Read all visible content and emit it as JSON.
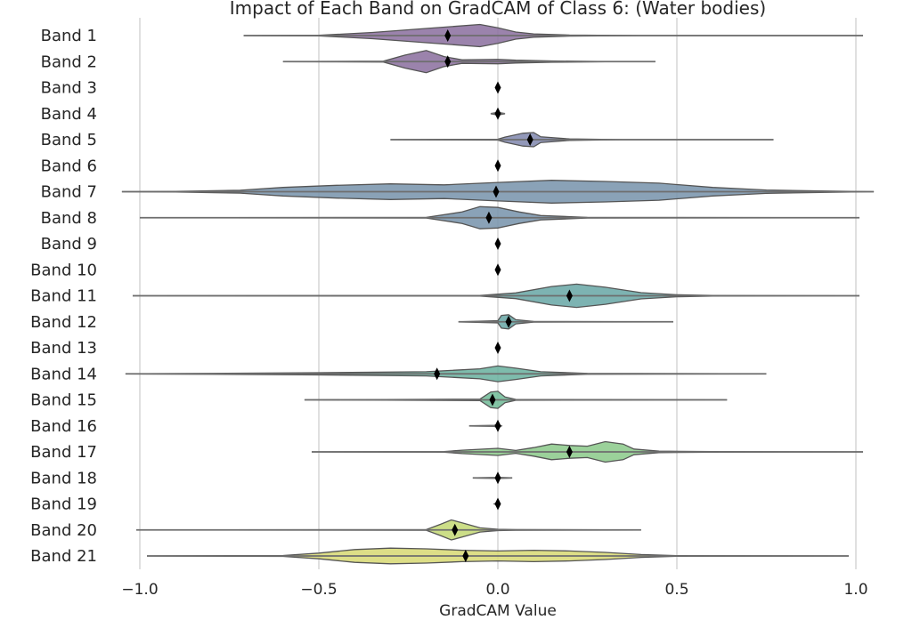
{
  "chart_data": {
    "type": "violin",
    "title": "Impact of Each Band on GradCAM of Class 6: (Water bodies)",
    "xlabel": "GradCAM Value",
    "ylabel": "",
    "xlim": [
      -1.05,
      1.05
    ],
    "xticks": [
      -1.0,
      -0.5,
      0.0,
      0.5,
      1.0
    ],
    "xtick_labels": [
      "−1.0",
      "−0.5",
      "0.0",
      "0.5",
      "1.0"
    ],
    "grid": "x",
    "orientation": "horizontal",
    "categories": [
      "Band 1",
      "Band 2",
      "Band 3",
      "Band 4",
      "Band 5",
      "Band 6",
      "Band 7",
      "Band 8",
      "Band 9",
      "Band 10",
      "Band 11",
      "Band 12",
      "Band 13",
      "Band 14",
      "Band 15",
      "Band 16",
      "Band 17",
      "Band 18",
      "Band 19",
      "Band 20",
      "Band 21"
    ],
    "series": [
      {
        "name": "Band 1",
        "min": -0.71,
        "max": 1.02,
        "mean": -0.14,
        "color": "#8a6d9e",
        "profile": [
          [
            -0.71,
            0
          ],
          [
            -0.5,
            0.02
          ],
          [
            -0.35,
            0.22
          ],
          [
            -0.2,
            0.5
          ],
          [
            -0.05,
            0.78
          ],
          [
            0,
            0.55
          ],
          [
            0.05,
            0.25
          ],
          [
            0.1,
            0.12
          ],
          [
            0.2,
            0.04
          ],
          [
            0.4,
            0
          ],
          [
            1.02,
            0
          ]
        ]
      },
      {
        "name": "Band 2",
        "min": -0.6,
        "max": 0.44,
        "mean": -0.14,
        "color": "#8a6d9e",
        "profile": [
          [
            -0.6,
            0
          ],
          [
            -0.32,
            0.03
          ],
          [
            -0.26,
            0.45
          ],
          [
            -0.2,
            0.78
          ],
          [
            -0.15,
            0.35
          ],
          [
            -0.1,
            0.12
          ],
          [
            0,
            0.15
          ],
          [
            0.05,
            0.1
          ],
          [
            0.15,
            0.05
          ],
          [
            0.3,
            0
          ],
          [
            0.44,
            0
          ]
        ]
      },
      {
        "name": "Band 3",
        "min": 0.0,
        "max": 0.0,
        "mean": 0.0,
        "color": "#8478a2",
        "profile": [
          [
            -0.005,
            0
          ],
          [
            0,
            0.03
          ],
          [
            0.005,
            0
          ]
        ]
      },
      {
        "name": "Band 4",
        "min": -0.02,
        "max": 0.02,
        "mean": 0.0,
        "color": "#8478a2",
        "profile": [
          [
            -0.02,
            0
          ],
          [
            0,
            0.1
          ],
          [
            0.02,
            0
          ]
        ]
      },
      {
        "name": "Band 5",
        "min": -0.3,
        "max": 0.77,
        "mean": 0.09,
        "color": "#7f86ad",
        "profile": [
          [
            -0.3,
            0
          ],
          [
            0,
            0.03
          ],
          [
            0.02,
            0.18
          ],
          [
            0.07,
            0.45
          ],
          [
            0.1,
            0.5
          ],
          [
            0.12,
            0.2
          ],
          [
            0.2,
            0.05
          ],
          [
            0.35,
            0
          ],
          [
            0.77,
            0
          ]
        ]
      },
      {
        "name": "Band 6",
        "min": 0.0,
        "max": 0.0,
        "mean": 0.0,
        "color": "#7f86ad",
        "profile": [
          [
            -0.005,
            0
          ],
          [
            0,
            0.03
          ],
          [
            0.005,
            0
          ]
        ]
      },
      {
        "name": "Band 7",
        "min": -1.05,
        "max": 1.05,
        "mean": -0.005,
        "color": "#7592aa",
        "profile": [
          [
            -1.05,
            0
          ],
          [
            -0.9,
            0.02
          ],
          [
            -0.72,
            0.1
          ],
          [
            -0.6,
            0.3
          ],
          [
            -0.45,
            0.45
          ],
          [
            -0.3,
            0.55
          ],
          [
            -0.15,
            0.48
          ],
          [
            0,
            0.65
          ],
          [
            0.15,
            0.8
          ],
          [
            0.3,
            0.72
          ],
          [
            0.45,
            0.6
          ],
          [
            0.6,
            0.3
          ],
          [
            0.75,
            0.12
          ],
          [
            0.9,
            0.05
          ],
          [
            1.05,
            0
          ]
        ]
      },
      {
        "name": "Band 8",
        "min": -1.0,
        "max": 1.01,
        "mean": -0.025,
        "color": "#7592aa",
        "profile": [
          [
            -1.0,
            0
          ],
          [
            -0.2,
            0.02
          ],
          [
            -0.1,
            0.4
          ],
          [
            -0.05,
            0.78
          ],
          [
            0,
            0.72
          ],
          [
            0.06,
            0.4
          ],
          [
            0.12,
            0.15
          ],
          [
            0.25,
            0.02
          ],
          [
            1.01,
            0
          ]
        ]
      },
      {
        "name": "Band 9",
        "min": 0.0,
        "max": 0.0,
        "mean": 0.0,
        "color": "#6e9aab",
        "profile": [
          [
            -0.005,
            0
          ],
          [
            0,
            0.03
          ],
          [
            0.005,
            0
          ]
        ]
      },
      {
        "name": "Band 10",
        "min": 0.0,
        "max": 0.0,
        "mean": 0.0,
        "color": "#6e9aab",
        "profile": [
          [
            -0.005,
            0
          ],
          [
            0,
            0.03
          ],
          [
            0.005,
            0
          ]
        ]
      },
      {
        "name": "Band 11",
        "min": -1.02,
        "max": 1.01,
        "mean": 0.2,
        "color": "#66a6a4",
        "profile": [
          [
            -1.02,
            0
          ],
          [
            -0.05,
            0.02
          ],
          [
            0.05,
            0.2
          ],
          [
            0.15,
            0.65
          ],
          [
            0.22,
            0.82
          ],
          [
            0.3,
            0.6
          ],
          [
            0.4,
            0.22
          ],
          [
            0.5,
            0.07
          ],
          [
            0.6,
            0.02
          ],
          [
            1.01,
            0
          ]
        ]
      },
      {
        "name": "Band 12",
        "min": -0.11,
        "max": 0.49,
        "mean": 0.03,
        "color": "#66a6a4",
        "profile": [
          [
            -0.11,
            0
          ],
          [
            0,
            0.08
          ],
          [
            0.01,
            0.45
          ],
          [
            0.03,
            0.5
          ],
          [
            0.05,
            0.15
          ],
          [
            0.1,
            0.02
          ],
          [
            0.49,
            0
          ]
        ]
      },
      {
        "name": "Band 13",
        "min": 0.0,
        "max": 0.0,
        "mean": 0.0,
        "color": "#67b09e",
        "profile": [
          [
            -0.005,
            0
          ],
          [
            0,
            0.03
          ],
          [
            0.005,
            0
          ]
        ]
      },
      {
        "name": "Band 14",
        "min": -1.04,
        "max": 0.75,
        "mean": -0.17,
        "color": "#67b09e",
        "profile": [
          [
            -1.04,
            0
          ],
          [
            -0.8,
            0.03
          ],
          [
            -0.5,
            0.08
          ],
          [
            -0.2,
            0.15
          ],
          [
            -0.05,
            0.35
          ],
          [
            0,
            0.55
          ],
          [
            0.05,
            0.4
          ],
          [
            0.12,
            0.15
          ],
          [
            0.25,
            0.03
          ],
          [
            0.75,
            0
          ]
        ]
      },
      {
        "name": "Band 15",
        "min": -0.54,
        "max": 0.64,
        "mean": -0.015,
        "color": "#6fbb96",
        "profile": [
          [
            -0.54,
            0
          ],
          [
            -0.05,
            0.05
          ],
          [
            -0.02,
            0.55
          ],
          [
            0,
            0.6
          ],
          [
            0.02,
            0.2
          ],
          [
            0.05,
            0.03
          ],
          [
            0.64,
            0
          ]
        ]
      },
      {
        "name": "Band 16",
        "min": -0.08,
        "max": 0.0,
        "mean": 0.0,
        "color": "#6fbb96",
        "profile": [
          [
            -0.08,
            0
          ],
          [
            -0.01,
            0.04
          ],
          [
            0,
            0.12
          ],
          [
            0.01,
            0
          ]
        ]
      },
      {
        "name": "Band 17",
        "min": -0.52,
        "max": 1.02,
        "mean": 0.2,
        "color": "#8ac988",
        "profile": [
          [
            -0.52,
            0
          ],
          [
            -0.15,
            0.02
          ],
          [
            -0.1,
            0.12
          ],
          [
            0,
            0.25
          ],
          [
            0.05,
            0.1
          ],
          [
            0.1,
            0.3
          ],
          [
            0.15,
            0.55
          ],
          [
            0.2,
            0.45
          ],
          [
            0.25,
            0.4
          ],
          [
            0.3,
            0.72
          ],
          [
            0.35,
            0.55
          ],
          [
            0.38,
            0.2
          ],
          [
            0.45,
            0.05
          ],
          [
            0.6,
            0.02
          ],
          [
            1.02,
            0
          ]
        ]
      },
      {
        "name": "Band 18",
        "min": -0.07,
        "max": 0.04,
        "mean": 0.0,
        "color": "#9ed084",
        "profile": [
          [
            -0.07,
            0
          ],
          [
            -0.005,
            0.04
          ],
          [
            0,
            0.1
          ],
          [
            0.005,
            0.04
          ],
          [
            0.04,
            0
          ]
        ]
      },
      {
        "name": "Band 19",
        "min": -0.01,
        "max": 0.0,
        "mean": 0.0,
        "color": "#9ed084",
        "profile": [
          [
            -0.01,
            0
          ],
          [
            0,
            0.12
          ],
          [
            0.005,
            0
          ]
        ]
      },
      {
        "name": "Band 20",
        "min": -1.01,
        "max": 0.4,
        "mean": -0.12,
        "color": "#c3d873",
        "profile": [
          [
            -1.01,
            0
          ],
          [
            -0.2,
            0.02
          ],
          [
            -0.16,
            0.4
          ],
          [
            -0.13,
            0.7
          ],
          [
            -0.1,
            0.5
          ],
          [
            -0.05,
            0.15
          ],
          [
            0,
            0.05
          ],
          [
            0.05,
            0.02
          ],
          [
            0.4,
            0
          ]
        ]
      },
      {
        "name": "Band 21",
        "min": -0.98,
        "max": 0.98,
        "mean": -0.09,
        "color": "#d7d872",
        "profile": [
          [
            -0.98,
            0
          ],
          [
            -0.6,
            0.03
          ],
          [
            -0.5,
            0.2
          ],
          [
            -0.4,
            0.45
          ],
          [
            -0.3,
            0.55
          ],
          [
            -0.2,
            0.5
          ],
          [
            -0.1,
            0.4
          ],
          [
            0,
            0.35
          ],
          [
            0.1,
            0.4
          ],
          [
            0.2,
            0.35
          ],
          [
            0.3,
            0.25
          ],
          [
            0.4,
            0.1
          ],
          [
            0.5,
            0.02
          ],
          [
            0.98,
            0
          ]
        ]
      }
    ]
  }
}
